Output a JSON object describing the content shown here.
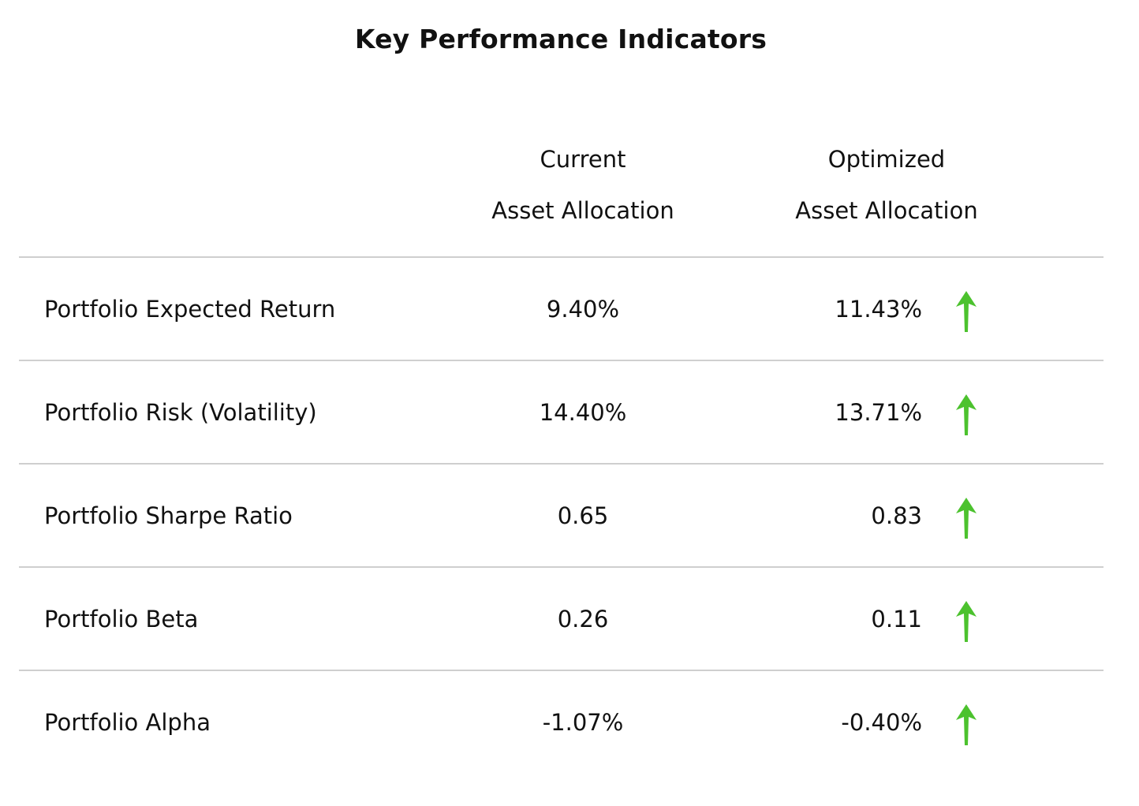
{
  "title": "Key Performance Indicators",
  "columns": {
    "current": [
      "Current",
      "Asset Allocation"
    ],
    "optimized": [
      "Optimized",
      "Asset Allocation"
    ]
  },
  "arrow_color": "#4cc22e",
  "rows": [
    {
      "metric": "Portfolio Expected Return",
      "current": "9.40%",
      "optimized": "11.43%",
      "indicator": "up-arrow-icon"
    },
    {
      "metric": "Portfolio Risk (Volatility)",
      "current": "14.40%",
      "optimized": "13.71%",
      "indicator": "up-arrow-icon"
    },
    {
      "metric": "Portfolio Sharpe Ratio",
      "current": "0.65",
      "optimized": "0.83",
      "indicator": "up-arrow-icon"
    },
    {
      "metric": "Portfolio Beta",
      "current": "0.26",
      "optimized": "0.11",
      "indicator": "up-arrow-icon"
    },
    {
      "metric": "Portfolio Alpha",
      "current": "-1.07%",
      "optimized": "-0.40%",
      "indicator": "up-arrow-icon"
    }
  ]
}
